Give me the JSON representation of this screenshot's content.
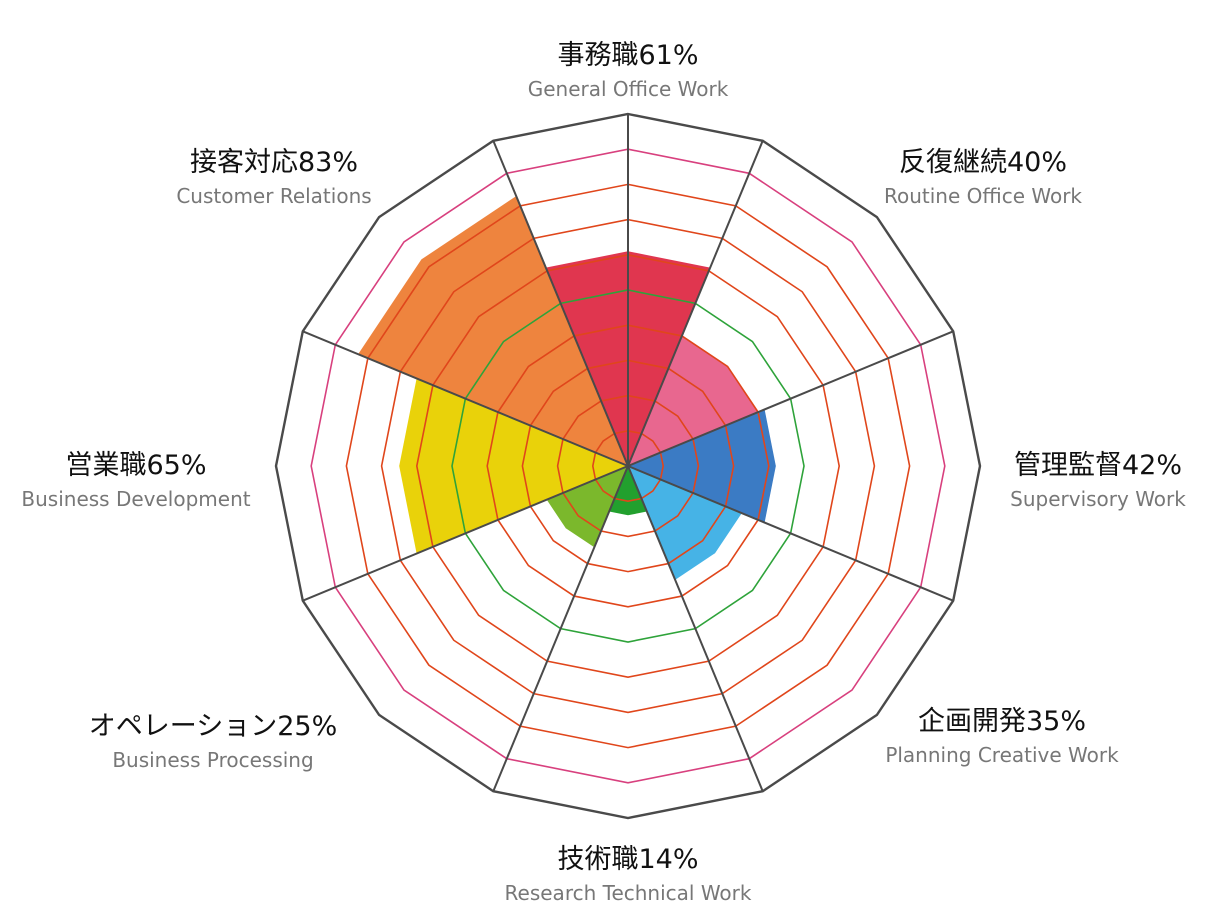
{
  "chart_data": {
    "type": "radar",
    "title": "",
    "r_range": [
      0,
      100
    ],
    "ring_step": 10,
    "grid": true,
    "grid_colors": {
      "ring": "#e0461b",
      "ring_50": "#2ea33a",
      "ring_90": "#d8407e",
      "outer": "#4a4a4a",
      "spoke": "#4a4a4a"
    },
    "categories": [
      {
        "label": "事務職",
        "value": 61,
        "value_text": "61%",
        "sub": "General Office Work",
        "color": "#e0364f"
      },
      {
        "label": "反復継続",
        "value": 40,
        "value_text": "40%",
        "sub": "Routine Office Work",
        "color": "#e8678f"
      },
      {
        "label": "管理監督",
        "value": 42,
        "value_text": "42%",
        "sub": "Supervisory Work",
        "color": "#3b7bc4"
      },
      {
        "label": "企画開発",
        "value": 35,
        "value_text": "35%",
        "sub": "Planning Creative Work",
        "color": "#46b3e6"
      },
      {
        "label": "技術職",
        "value": 14,
        "value_text": "14%",
        "sub": "Research Technical Work",
        "color": "#22a02e"
      },
      {
        "label": "オペレーション",
        "value": 25,
        "value_text": "25%",
        "sub": "Business Processing",
        "color": "#7bb82c"
      },
      {
        "label": "営業職",
        "value": 65,
        "value_text": "65%",
        "sub": "Business Development",
        "color": "#e9d20a"
      },
      {
        "label": "接客対応",
        "value": 83,
        "value_text": "83%",
        "sub": "Customer Relations",
        "color": "#ee843e"
      }
    ]
  }
}
